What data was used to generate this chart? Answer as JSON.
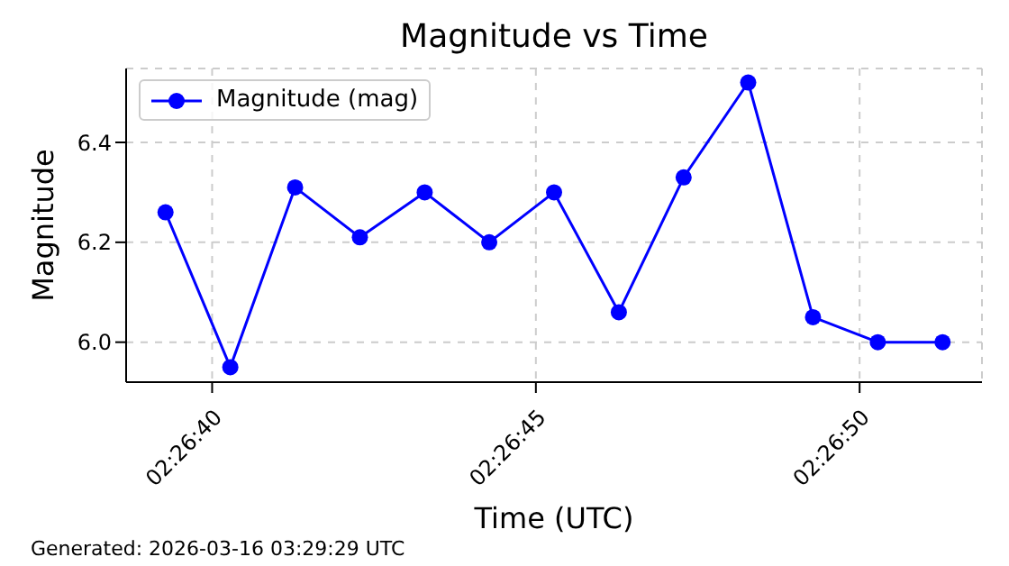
{
  "chart_data": {
    "type": "line",
    "title": "Magnitude vs Time",
    "xlabel": "Time (UTC)",
    "ylabel": "Magnitude",
    "annotations": [
      "Generated: 2026-03-16 03:29:29 UTC"
    ],
    "x": [
      2.444244,
      2.444522,
      2.4448,
      2.445078,
      2.445356,
      2.445633,
      2.445911,
      2.446189,
      2.446467,
      2.446744,
      2.447022,
      2.4473,
      2.447578
    ],
    "series": [
      {
        "name": "Magnitude (mag)",
        "color": "#0000ff",
        "values": [
          6.26,
          5.95,
          6.31,
          6.21,
          6.3,
          6.2,
          6.3,
          6.06,
          6.33,
          6.52,
          6.05,
          6.0,
          6.0
        ]
      }
    ],
    "xlim": [
      2.444075,
      2.447747
    ],
    "xticks": [
      {
        "value": 2.444444,
        "label": "02:26:40"
      },
      {
        "value": 2.445833,
        "label": "02:26:45"
      },
      {
        "value": 2.447222,
        "label": "02:26:50"
      }
    ],
    "ylim": [
      5.92,
      6.548
    ],
    "yticks": [
      {
        "value": 6.0,
        "label": "6.0"
      },
      {
        "value": 6.2,
        "label": "6.2"
      },
      {
        "value": 6.4,
        "label": "6.4"
      }
    ],
    "grid": true,
    "legend": "top left",
    "marker": "circle",
    "line_style": "solid"
  }
}
